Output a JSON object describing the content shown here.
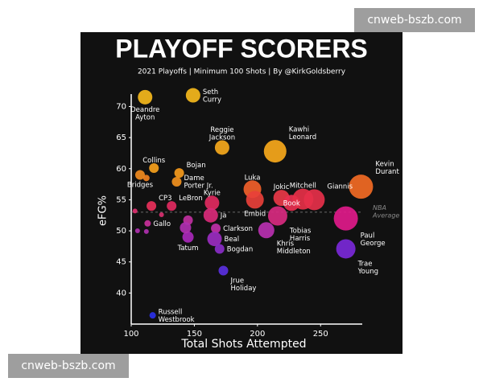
{
  "watermarks": [
    "cnweb-bszb.com",
    "cnweb-bszb.com"
  ],
  "chart_data": {
    "type": "bubble",
    "title": "PLAYOFF SCORERS",
    "subtitle": "2021 Playoffs | Minimum 100 Shots | By @KirkGoldsberry",
    "x_label": "Total Shots Attempted",
    "y_label": "eFG%",
    "xlim": [
      100,
      283
    ],
    "xticks": [
      100,
      150,
      200,
      250
    ],
    "ylim": [
      35,
      72
    ],
    "yticks": [
      40,
      45,
      50,
      55,
      60,
      65,
      70
    ],
    "reference": {
      "value": 53,
      "label": "NBA\nAverage"
    },
    "x": [
      111,
      149,
      172,
      214,
      118,
      138,
      136,
      107,
      282,
      196,
      198,
      219,
      227,
      236,
      245,
      116,
      132,
      164,
      163,
      216,
      270,
      113,
      167,
      207,
      145,
      166,
      170,
      270,
      173,
      117,
      103,
      105,
      112,
      145,
      143,
      124,
      112
    ],
    "y": [
      71.5,
      71.8,
      63.4,
      62.8,
      60.1,
      59.3,
      57.9,
      59,
      57.1,
      56.7,
      55,
      55.3,
      54.5,
      55.1,
      55,
      54,
      54,
      54.5,
      52.5,
      52.4,
      52,
      51.2,
      50.4,
      50.1,
      49,
      48.7,
      47.1,
      47.1,
      43.6,
      36.4,
      53.2,
      50,
      49.9,
      51.7,
      50.5,
      52.6,
      58.5
    ],
    "sizes": [
      9,
      9,
      9,
      14,
      6,
      6,
      6,
      6,
      15,
      11,
      11,
      10,
      10,
      13,
      13,
      6,
      6,
      9,
      9,
      12,
      15,
      4,
      6,
      10,
      7,
      9,
      6,
      12,
      6,
      4,
      3,
      3,
      3,
      6,
      7,
      3,
      4
    ],
    "colors": [
      "#f5b81c",
      "#f5b81c",
      "#f5a81c",
      "#f7a81b",
      "#f5a01c",
      "#f59a1c",
      "#f0901e",
      "#f08a1e",
      "#f26a24",
      "#f0602a",
      "#e8403a",
      "#e83848",
      "#e83050",
      "#e63048",
      "#e6304a",
      "#e8305a",
      "#e02a60",
      "#e02a60",
      "#d82a78",
      "#d82a80",
      "#e01a8a",
      "#c8309a",
      "#c030a8",
      "#b830b0",
      "#a828b8",
      "#9a2cc0",
      "#8a2cc8",
      "#7a28d8",
      "#5a30e0",
      "#2a30e8",
      "#e03070",
      "#b030b0",
      "#b030b0",
      "#c030a0",
      "#b030b0",
      "#d83070",
      "#f08020"
    ],
    "labels": [
      "Deandre\nAyton",
      "Seth\nCurry",
      "Reggie\nJackson",
      "Kawhi\nLeonard",
      "Collins",
      "Bojan",
      "Dame\nPorter Jr.",
      "Bridges",
      "Kevin\nDurant",
      "Luka",
      "Embid",
      "Jokic",
      "Book",
      "Mitchell",
      "Giannis",
      "CP3",
      "LeBron",
      "Kyrie",
      "Ja",
      "Tobias\nHarris",
      "Paul\nGeorge",
      "Gallo",
      "Clarkson",
      "Khris\nMiddleton",
      "Tatum",
      "Beal",
      "Bogdan",
      "Trae\nYoung",
      "Jrue\nHoliday",
      "Russell\nWestbrook",
      null,
      null,
      null,
      null,
      null,
      null,
      null
    ]
  }
}
